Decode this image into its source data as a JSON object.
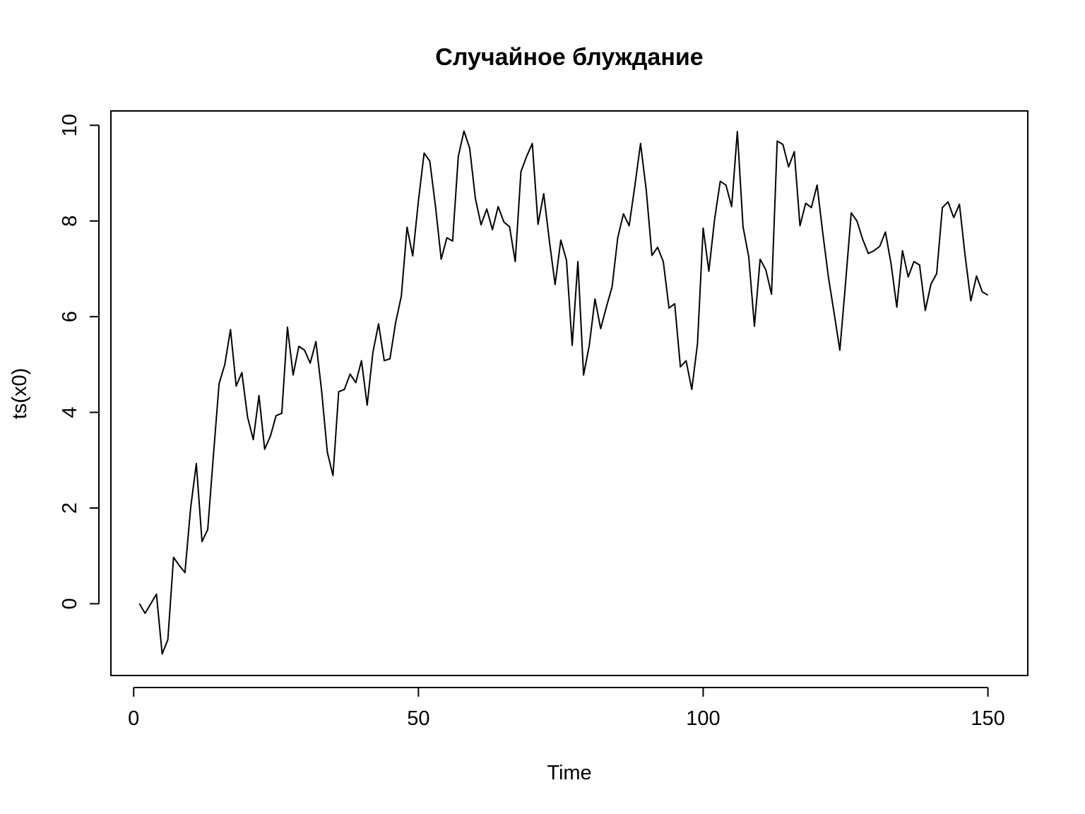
{
  "chart_data": {
    "type": "line",
    "title": "Случайное блуждание",
    "xlabel": "Time",
    "ylabel": "ts(x0)",
    "xlim": [
      -4,
      157
    ],
    "ylim": [
      -1.5,
      10.3
    ],
    "xticks": [
      0,
      50,
      100,
      150
    ],
    "xtick_labels": [
      "0",
      "50",
      "100",
      "150"
    ],
    "yticks": [
      0,
      2,
      4,
      6,
      8,
      10
    ],
    "ytick_labels": [
      "0",
      "2",
      "4",
      "6",
      "8",
      "10"
    ],
    "grid": false,
    "legend": "none",
    "line_color": "#000000",
    "series": [
      {
        "x": [
          1,
          2,
          3,
          4,
          5,
          6,
          7,
          8,
          9,
          10,
          11,
          12,
          13,
          14,
          15,
          16,
          17,
          18,
          19,
          20,
          21,
          22,
          23,
          24,
          25,
          26,
          27,
          28,
          29,
          30,
          31,
          32,
          33,
          34,
          35,
          36,
          37,
          38,
          39,
          40,
          41,
          42,
          43,
          44,
          45,
          46,
          47,
          48,
          49,
          50,
          51,
          52,
          53,
          54,
          55,
          56,
          57,
          58,
          59,
          60,
          61,
          62,
          63,
          64,
          65,
          66,
          67,
          68,
          69,
          70,
          71,
          72,
          73,
          74,
          75,
          76,
          77,
          78,
          79,
          80,
          81,
          82,
          83,
          84,
          85,
          86,
          87,
          88,
          89,
          90,
          91,
          92,
          93,
          94,
          95,
          96,
          97,
          98,
          99,
          100,
          101,
          102,
          103,
          104,
          105,
          106,
          107,
          108,
          109,
          110,
          111,
          112,
          113,
          114,
          115,
          116,
          117,
          118,
          119,
          120,
          121,
          122,
          123,
          124,
          125,
          126,
          127,
          128,
          129,
          130,
          131,
          132,
          133,
          134,
          135,
          136,
          137,
          138,
          139,
          140,
          141,
          142,
          143,
          144,
          145,
          146,
          147,
          148,
          149,
          150
        ],
        "values": [
          0.0,
          -0.2,
          0.0,
          0.2,
          -1.05,
          -0.75,
          0.97,
          0.8,
          0.65,
          2.0,
          2.93,
          1.3,
          1.55,
          3.1,
          4.6,
          5.0,
          5.73,
          4.55,
          4.83,
          3.9,
          3.43,
          4.35,
          3.23,
          3.5,
          3.93,
          3.98,
          5.78,
          4.78,
          5.38,
          5.3,
          5.03,
          5.48,
          4.45,
          3.17,
          2.68,
          4.43,
          4.48,
          4.8,
          4.62,
          5.08,
          4.15,
          5.25,
          5.85,
          5.08,
          5.12,
          5.88,
          6.43,
          7.87,
          7.27,
          8.42,
          9.42,
          9.25,
          8.3,
          7.2,
          7.65,
          7.58,
          9.35,
          9.88,
          9.52,
          8.47,
          7.92,
          8.25,
          7.82,
          8.3,
          7.98,
          7.88,
          7.15,
          9.03,
          9.35,
          9.62,
          7.93,
          8.57,
          7.58,
          6.67,
          7.6,
          7.18,
          5.4,
          7.15,
          4.78,
          5.4,
          6.37,
          5.75,
          6.2,
          6.62,
          7.65,
          8.15,
          7.9,
          8.73,
          9.62,
          8.65,
          7.28,
          7.45,
          7.15,
          6.18,
          6.27,
          4.95,
          5.08,
          4.48,
          5.43,
          7.85,
          6.95,
          8.03,
          8.83,
          8.75,
          8.3,
          9.87,
          7.88,
          7.25,
          5.8,
          7.2,
          6.98,
          6.47,
          9.67,
          9.6,
          9.13,
          9.45,
          7.9,
          8.37,
          8.28,
          8.75,
          7.75,
          6.82,
          6.07,
          5.3,
          6.7,
          8.17,
          8.0,
          7.62,
          7.32,
          7.38,
          7.47,
          7.77,
          7.1,
          6.2,
          7.38,
          6.83,
          7.15,
          7.08,
          6.13,
          6.68,
          6.9,
          8.28,
          8.4,
          8.07,
          8.35,
          7.27,
          6.33,
          6.85,
          6.52,
          6.45
        ]
      }
    ]
  }
}
